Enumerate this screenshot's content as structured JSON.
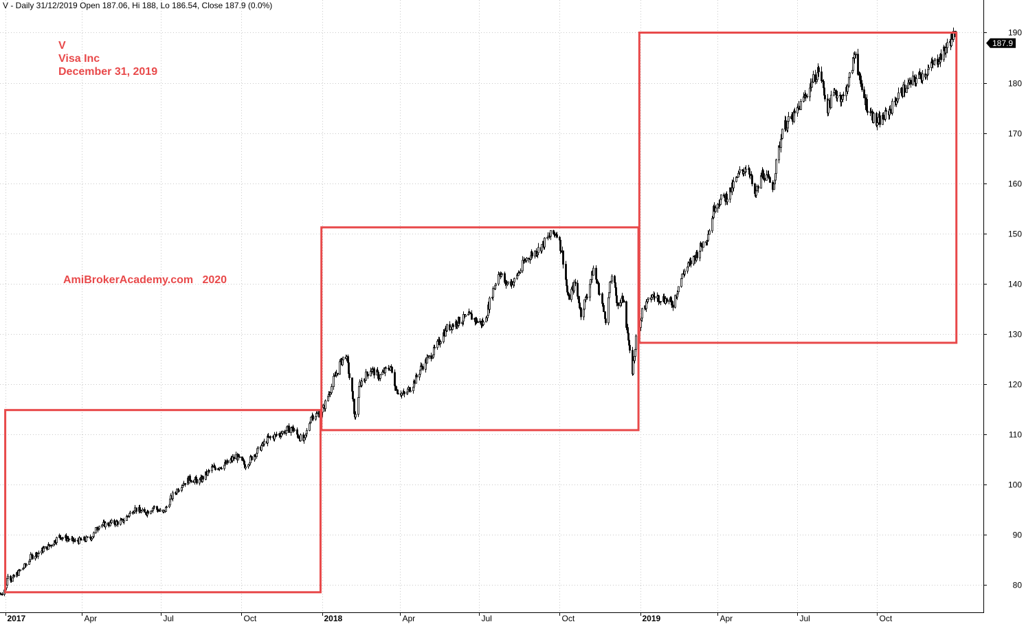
{
  "header": {
    "text": "V - Daily 31/12/2019 Open 187.06, Hi 188, Lo 186.54, Close 187.9 (0.0%)"
  },
  "annotations": {
    "symbol": "V",
    "company": "Visa Inc",
    "date": "December 31, 2019",
    "watermark": "AmiBrokerAcademy.com   2020"
  },
  "colors": {
    "price": "#000000",
    "box": "#e8494a",
    "annotation": "#e8494a",
    "grid": "#c8c8c8",
    "last_label_bg": "#000000",
    "last_label_text": "#ffffff"
  },
  "chart_data": {
    "type": "line",
    "style": "candlestick",
    "y_axis": {
      "range": [
        74.5,
        196.5
      ],
      "ticks": [
        80,
        90,
        100,
        110,
        120,
        130,
        140,
        150,
        160,
        170,
        180,
        190
      ],
      "position": "right"
    },
    "x_axis": {
      "range": [
        "2016-12-28",
        "2020-01-31"
      ],
      "ticks": [
        {
          "date": "2017-01-03",
          "label": "2017",
          "bold": true
        },
        {
          "date": "2017-04-01",
          "label": "Apr",
          "bold": false
        },
        {
          "date": "2017-07-01",
          "label": "Jul",
          "bold": false
        },
        {
          "date": "2017-10-01",
          "label": "Oct",
          "bold": false
        },
        {
          "date": "2018-01-02",
          "label": "2018",
          "bold": true
        },
        {
          "date": "2018-04-01",
          "label": "Apr",
          "bold": false
        },
        {
          "date": "2018-07-01",
          "label": "Jul",
          "bold": false
        },
        {
          "date": "2018-10-01",
          "label": "Oct",
          "bold": false
        },
        {
          "date": "2019-01-02",
          "label": "2019",
          "bold": true
        },
        {
          "date": "2019-04-01",
          "label": "Apr",
          "bold": false
        },
        {
          "date": "2019-07-01",
          "label": "Jul",
          "bold": false
        },
        {
          "date": "2019-10-01",
          "label": "Oct",
          "bold": false
        }
      ]
    },
    "grid": true,
    "last_price": {
      "value": 187.9,
      "label": "187.9"
    },
    "series": [
      {
        "points": [
          [
            "2016-12-28",
            78.2
          ],
          [
            "2017-01-03",
            79.2
          ],
          [
            "2017-01-06",
            82.2
          ],
          [
            "2017-01-10",
            81.0
          ],
          [
            "2017-01-18",
            82.5
          ],
          [
            "2017-01-26",
            83.8
          ],
          [
            "2017-02-01",
            85.5
          ],
          [
            "2017-02-10",
            86.4
          ],
          [
            "2017-02-24",
            88.0
          ],
          [
            "2017-03-06",
            89.6
          ],
          [
            "2017-03-15",
            89.2
          ],
          [
            "2017-03-24",
            88.6
          ],
          [
            "2017-04-05",
            89.0
          ],
          [
            "2017-04-12",
            89.5
          ],
          [
            "2017-04-20",
            91.8
          ],
          [
            "2017-05-03",
            92.2
          ],
          [
            "2017-05-17",
            92.6
          ],
          [
            "2017-05-31",
            95.2
          ],
          [
            "2017-06-12",
            94.2
          ],
          [
            "2017-06-22",
            95.5
          ],
          [
            "2017-07-03",
            94.2
          ],
          [
            "2017-07-14",
            97.8
          ],
          [
            "2017-07-24",
            100.0
          ],
          [
            "2017-08-03",
            101.1
          ],
          [
            "2017-08-14",
            100.6
          ],
          [
            "2017-08-28",
            103.2
          ],
          [
            "2017-09-11",
            103.8
          ],
          [
            "2017-09-25",
            105.6
          ],
          [
            "2017-10-05",
            103.8
          ],
          [
            "2017-10-16",
            106.0
          ],
          [
            "2017-10-31",
            109.0
          ],
          [
            "2017-11-13",
            110.0
          ],
          [
            "2017-11-27",
            111.3
          ],
          [
            "2017-12-06",
            109.5
          ],
          [
            "2017-12-12",
            108.6
          ],
          [
            "2017-12-20",
            113.6
          ],
          [
            "2017-12-29",
            114.1
          ],
          [
            "2018-01-03",
            115.2
          ],
          [
            "2018-01-12",
            119.5
          ],
          [
            "2018-01-22",
            124.0
          ],
          [
            "2018-01-29",
            125.8
          ],
          [
            "2018-02-05",
            118.0
          ],
          [
            "2018-02-08",
            113.0
          ],
          [
            "2018-02-14",
            120.0
          ],
          [
            "2018-02-26",
            123.0
          ],
          [
            "2018-03-08",
            121.5
          ],
          [
            "2018-03-21",
            123.5
          ],
          [
            "2018-03-28",
            118.8
          ],
          [
            "2018-04-06",
            117.8
          ],
          [
            "2018-04-16",
            120.0
          ],
          [
            "2018-04-26",
            123.5
          ],
          [
            "2018-05-10",
            126.5
          ],
          [
            "2018-05-24",
            131.0
          ],
          [
            "2018-06-07",
            132.5
          ],
          [
            "2018-06-20",
            133.6
          ],
          [
            "2018-06-29",
            132.4
          ],
          [
            "2018-07-06",
            132.0
          ],
          [
            "2018-07-16",
            138.2
          ],
          [
            "2018-07-24",
            142.5
          ],
          [
            "2018-07-31",
            140.0
          ],
          [
            "2018-08-10",
            140.5
          ],
          [
            "2018-08-24",
            145.0
          ],
          [
            "2018-09-07",
            146.8
          ],
          [
            "2018-09-20",
            149.5
          ],
          [
            "2018-09-28",
            150.2
          ],
          [
            "2018-10-04",
            146.0
          ],
          [
            "2018-10-11",
            137.0
          ],
          [
            "2018-10-19",
            140.0
          ],
          [
            "2018-10-26",
            134.0
          ],
          [
            "2018-11-02",
            138.0
          ],
          [
            "2018-11-09",
            143.0
          ],
          [
            "2018-11-16",
            138.0
          ],
          [
            "2018-11-23",
            133.0
          ],
          [
            "2018-11-30",
            141.9
          ],
          [
            "2018-12-07",
            136.0
          ],
          [
            "2018-12-14",
            137.0
          ],
          [
            "2018-12-20",
            127.0
          ],
          [
            "2018-12-24",
            122.6
          ],
          [
            "2018-12-28",
            129.0
          ],
          [
            "2019-01-04",
            134.5
          ],
          [
            "2019-01-15",
            137.5
          ],
          [
            "2019-01-29",
            137.0
          ],
          [
            "2019-02-08",
            136.0
          ],
          [
            "2019-02-20",
            142.0
          ],
          [
            "2019-03-06",
            145.5
          ],
          [
            "2019-03-20",
            149.5
          ],
          [
            "2019-03-29",
            156.0
          ],
          [
            "2019-04-12",
            157.4
          ],
          [
            "2019-04-26",
            162.0
          ],
          [
            "2019-05-06",
            163.5
          ],
          [
            "2019-05-13",
            157.0
          ],
          [
            "2019-05-22",
            162.0
          ],
          [
            "2019-06-03",
            159.5
          ],
          [
            "2019-06-14",
            171.0
          ],
          [
            "2019-06-28",
            173.5
          ],
          [
            "2019-07-09",
            177.0
          ],
          [
            "2019-07-19",
            180.5
          ],
          [
            "2019-07-26",
            182.6
          ],
          [
            "2019-08-05",
            175.0
          ],
          [
            "2019-08-13",
            178.0
          ],
          [
            "2019-08-23",
            177.0
          ],
          [
            "2019-08-30",
            181.0
          ],
          [
            "2019-09-06",
            186.5
          ],
          [
            "2019-09-12",
            179.0
          ],
          [
            "2019-09-20",
            175.0
          ],
          [
            "2019-09-30",
            172.0
          ],
          [
            "2019-10-08",
            173.0
          ],
          [
            "2019-10-17",
            175.0
          ],
          [
            "2019-10-25",
            177.5
          ],
          [
            "2019-11-04",
            179.4
          ],
          [
            "2019-11-15",
            180.8
          ],
          [
            "2019-11-25",
            182.0
          ],
          [
            "2019-12-06",
            184.0
          ],
          [
            "2019-12-16",
            186.0
          ],
          [
            "2019-12-24",
            188.5
          ],
          [
            "2019-12-27",
            189.5
          ],
          [
            "2019-12-31",
            187.9
          ]
        ]
      }
    ],
    "boxes": [
      {
        "from": "2017-01-03",
        "to": "2017-12-31",
        "low": 78.5,
        "high": 114.8
      },
      {
        "from": "2018-01-01",
        "to": "2018-12-31",
        "low": 110.8,
        "high": 151.2
      },
      {
        "from": "2019-01-01",
        "to": "2019-12-31",
        "low": 128.2,
        "high": 190.0
      }
    ]
  }
}
